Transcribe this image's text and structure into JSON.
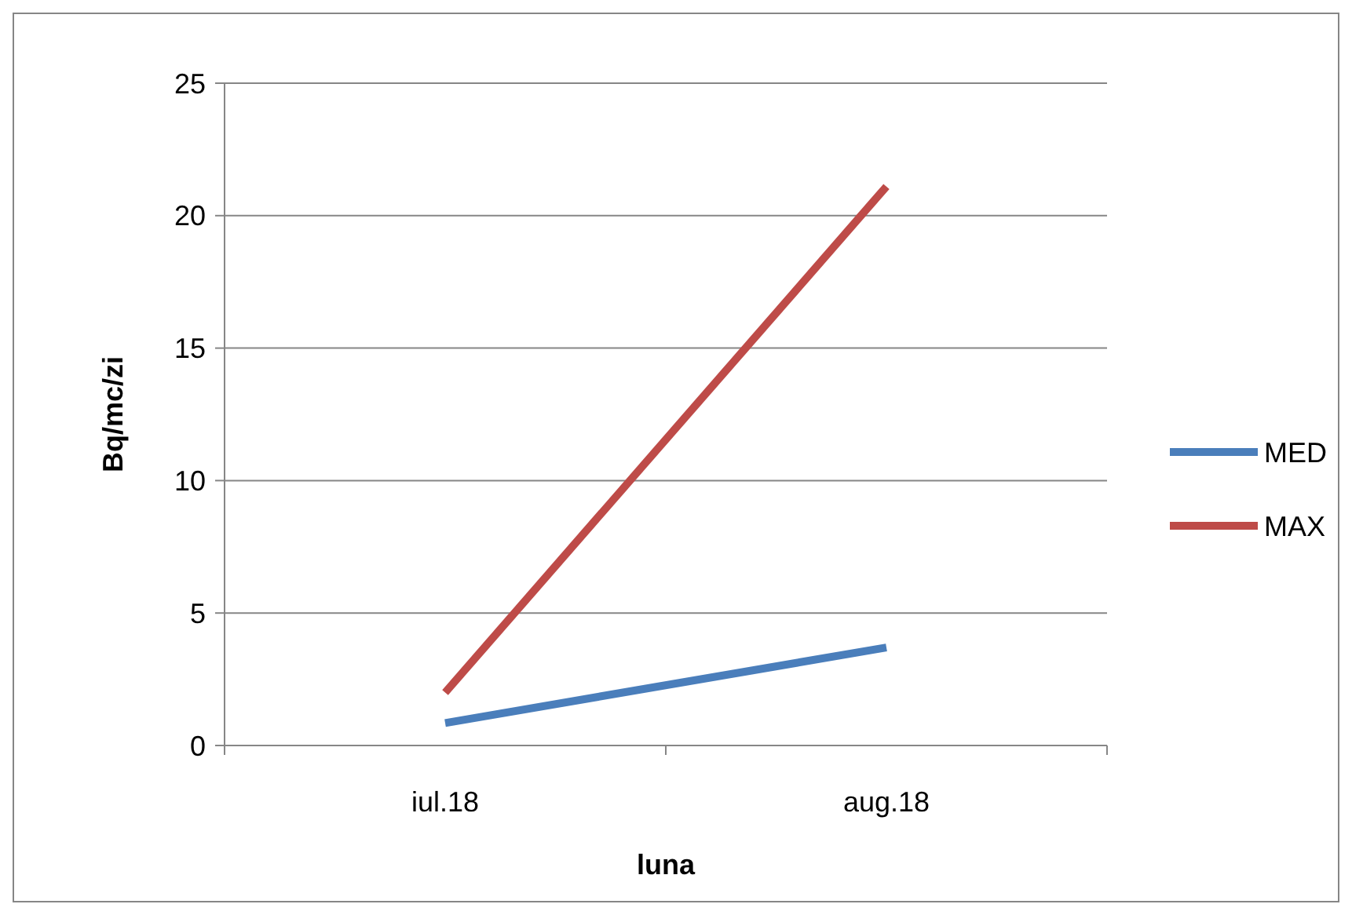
{
  "chart_data": {
    "type": "line",
    "xlabel": "luna",
    "ylabel": "Bq/mc/zi",
    "categories": [
      "iul.18",
      "aug.18"
    ],
    "series": [
      {
        "name": "MED",
        "color": "#4a7ebb",
        "values": [
          0.85,
          3.7
        ]
      },
      {
        "name": "MAX",
        "color": "#be4b48",
        "values": [
          2.0,
          21.1
        ]
      }
    ],
    "ylim": [
      0,
      25
    ],
    "yticks": [
      0,
      5,
      10,
      15,
      20,
      25
    ],
    "grid": "y",
    "legend": "right",
    "marker": "none",
    "line_style": "solid"
  }
}
